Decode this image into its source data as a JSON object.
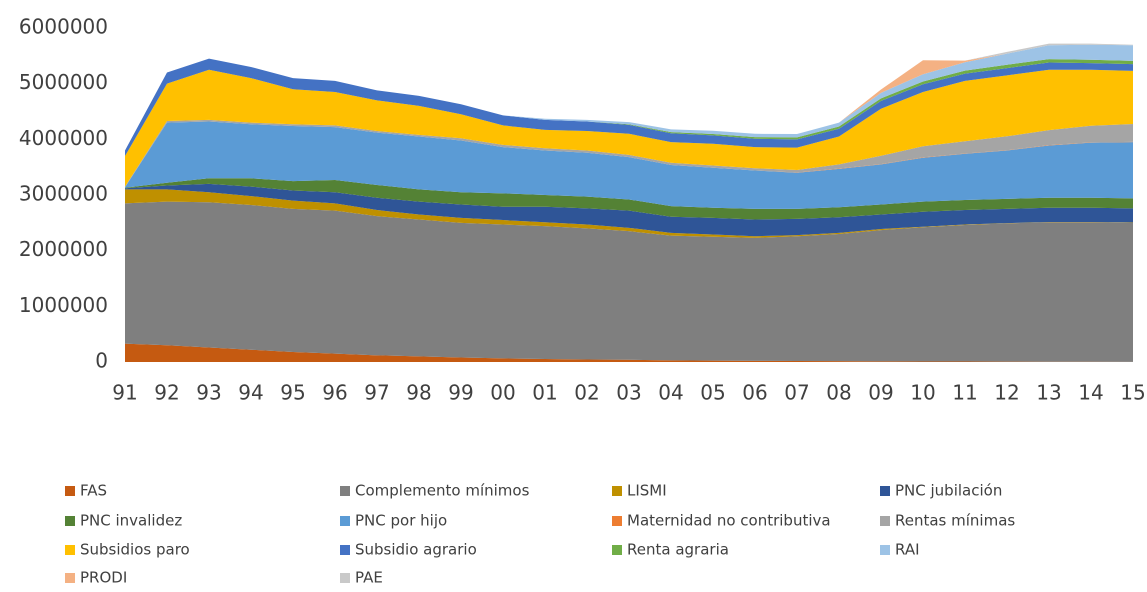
{
  "chart_data": {
    "type": "stacked-area",
    "categories": [
      "91",
      "92",
      "93",
      "94",
      "95",
      "96",
      "97",
      "98",
      "99",
      "00",
      "01",
      "02",
      "03",
      "04",
      "05",
      "06",
      "07",
      "08",
      "09",
      "10",
      "11",
      "12",
      "13",
      "14",
      "15"
    ],
    "ylim": [
      0,
      6000000
    ],
    "yticks": [
      0,
      1000000,
      2000000,
      3000000,
      4000000,
      5000000,
      6000000
    ],
    "series": [
      {
        "name": "FAS",
        "color": "#c55a11",
        "values": [
          330000,
          300000,
          260000,
          220000,
          180000,
          150000,
          120000,
          100000,
          80000,
          65000,
          55000,
          45000,
          40000,
          30000,
          25000,
          20000,
          18000,
          15000,
          12000,
          10000,
          8000,
          6000,
          5000,
          4000,
          3000
        ]
      },
      {
        "name": "Complemento mínimos",
        "color": "#7f7f7f",
        "values": [
          2520000,
          2580000,
          2610000,
          2600000,
          2570000,
          2570000,
          2500000,
          2460000,
          2420000,
          2405000,
          2385000,
          2355000,
          2310000,
          2240000,
          2225000,
          2210000,
          2242000,
          2285000,
          2358000,
          2410000,
          2452000,
          2484000,
          2505000,
          2506000,
          2497000
        ]
      },
      {
        "name": "LISMI",
        "color": "#bf9000",
        "values": [
          250000,
          220000,
          180000,
          160000,
          150000,
          130000,
          110000,
          90000,
          90000,
          80000,
          70000,
          70000,
          60000,
          50000,
          40000,
          30000,
          20000,
          20000,
          20000,
          10000,
          10000,
          5000,
          5000,
          5000,
          5000
        ]
      },
      {
        "name": "PNC jubilación",
        "color": "#2f5597",
        "values": [
          20000,
          70000,
          150000,
          170000,
          180000,
          200000,
          220000,
          230000,
          240000,
          240000,
          280000,
          290000,
          310000,
          290000,
          300000,
          300000,
          290000,
          280000,
          260000,
          270000,
          260000,
          255000,
          255000,
          255000,
          255000
        ]
      },
      {
        "name": "PNC invalidez",
        "color": "#548235",
        "values": [
          10000,
          50000,
          100000,
          150000,
          170000,
          220000,
          230000,
          220000,
          220000,
          240000,
          210000,
          210000,
          200000,
          190000,
          180000,
          190000,
          180000,
          180000,
          180000,
          180000,
          180000,
          180000,
          180000,
          180000,
          180000
        ]
      },
      {
        "name": "PNC por hijo",
        "color": "#5b9bd5",
        "values": [
          10000,
          1080000,
          1020000,
          970000,
          990000,
          950000,
          940000,
          950000,
          930000,
          830000,
          800000,
          790000,
          760000,
          740000,
          720000,
          690000,
          650000,
          690000,
          720000,
          790000,
          830000,
          870000,
          940000,
          990000,
          1010000
        ]
      },
      {
        "name": "Maternidad no contributiva",
        "color": "#ed7d31",
        "values": [
          0,
          0,
          0,
          0,
          0,
          0,
          0,
          0,
          0,
          0,
          0,
          0,
          0,
          0,
          0,
          0,
          5000,
          5000,
          5000,
          5000,
          5000,
          5000,
          5000,
          5000,
          5000
        ]
      },
      {
        "name": "Rentas mínimas",
        "color": "#a5a5a5",
        "values": [
          10000,
          30000,
          30000,
          30000,
          30000,
          30000,
          30000,
          30000,
          40000,
          40000,
          40000,
          40000,
          40000,
          40000,
          40000,
          40000,
          45000,
          75000,
          150000,
          200000,
          220000,
          250000,
          270000,
          300000,
          320000
        ]
      },
      {
        "name": "Subsidios paro",
        "color": "#ffc000",
        "values": [
          550000,
          670000,
          900000,
          800000,
          630000,
          600000,
          550000,
          520000,
          430000,
          350000,
          330000,
          350000,
          380000,
          370000,
          390000,
          380000,
          400000,
          500000,
          845000,
          975000,
          1085000,
          1095000,
          1085000,
          1005000,
          955000
        ]
      },
      {
        "name": "Subsidio agrario",
        "color": "#4472c4",
        "values": [
          100000,
          200000,
          200000,
          200000,
          200000,
          200000,
          180000,
          180000,
          180000,
          180000,
          180000,
          170000,
          160000,
          160000,
          150000,
          150000,
          150000,
          140000,
          140000,
          140000,
          130000,
          130000,
          130000,
          120000,
          120000
        ]
      },
      {
        "name": "Renta agraria",
        "color": "#70ad47",
        "values": [
          0,
          0,
          0,
          0,
          0,
          0,
          0,
          0,
          0,
          0,
          0,
          0,
          10000,
          20000,
          25000,
          30000,
          35000,
          40000,
          45000,
          50000,
          55000,
          60000,
          60000,
          60000,
          60000
        ]
      },
      {
        "name": "RAI",
        "color": "#9dc3e6",
        "values": [
          0,
          0,
          0,
          0,
          0,
          0,
          0,
          0,
          0,
          0,
          20000,
          30000,
          40000,
          50000,
          60000,
          60000,
          60000,
          70000,
          100000,
          130000,
          150000,
          200000,
          250000,
          270000,
          280000
        ]
      },
      {
        "name": "PRODI",
        "color": "#f4b183",
        "values": [
          0,
          0,
          0,
          0,
          0,
          0,
          0,
          0,
          0,
          0,
          0,
          0,
          0,
          0,
          0,
          0,
          0,
          0,
          60000,
          250000,
          30000,
          0,
          0,
          0,
          0
        ]
      },
      {
        "name": "PAE",
        "color": "#c9c9c9",
        "values": [
          0,
          0,
          0,
          0,
          0,
          0,
          0,
          0,
          0,
          0,
          0,
          0,
          0,
          0,
          0,
          0,
          0,
          0,
          0,
          0,
          0,
          30000,
          30000,
          20000,
          10000
        ]
      }
    ]
  }
}
